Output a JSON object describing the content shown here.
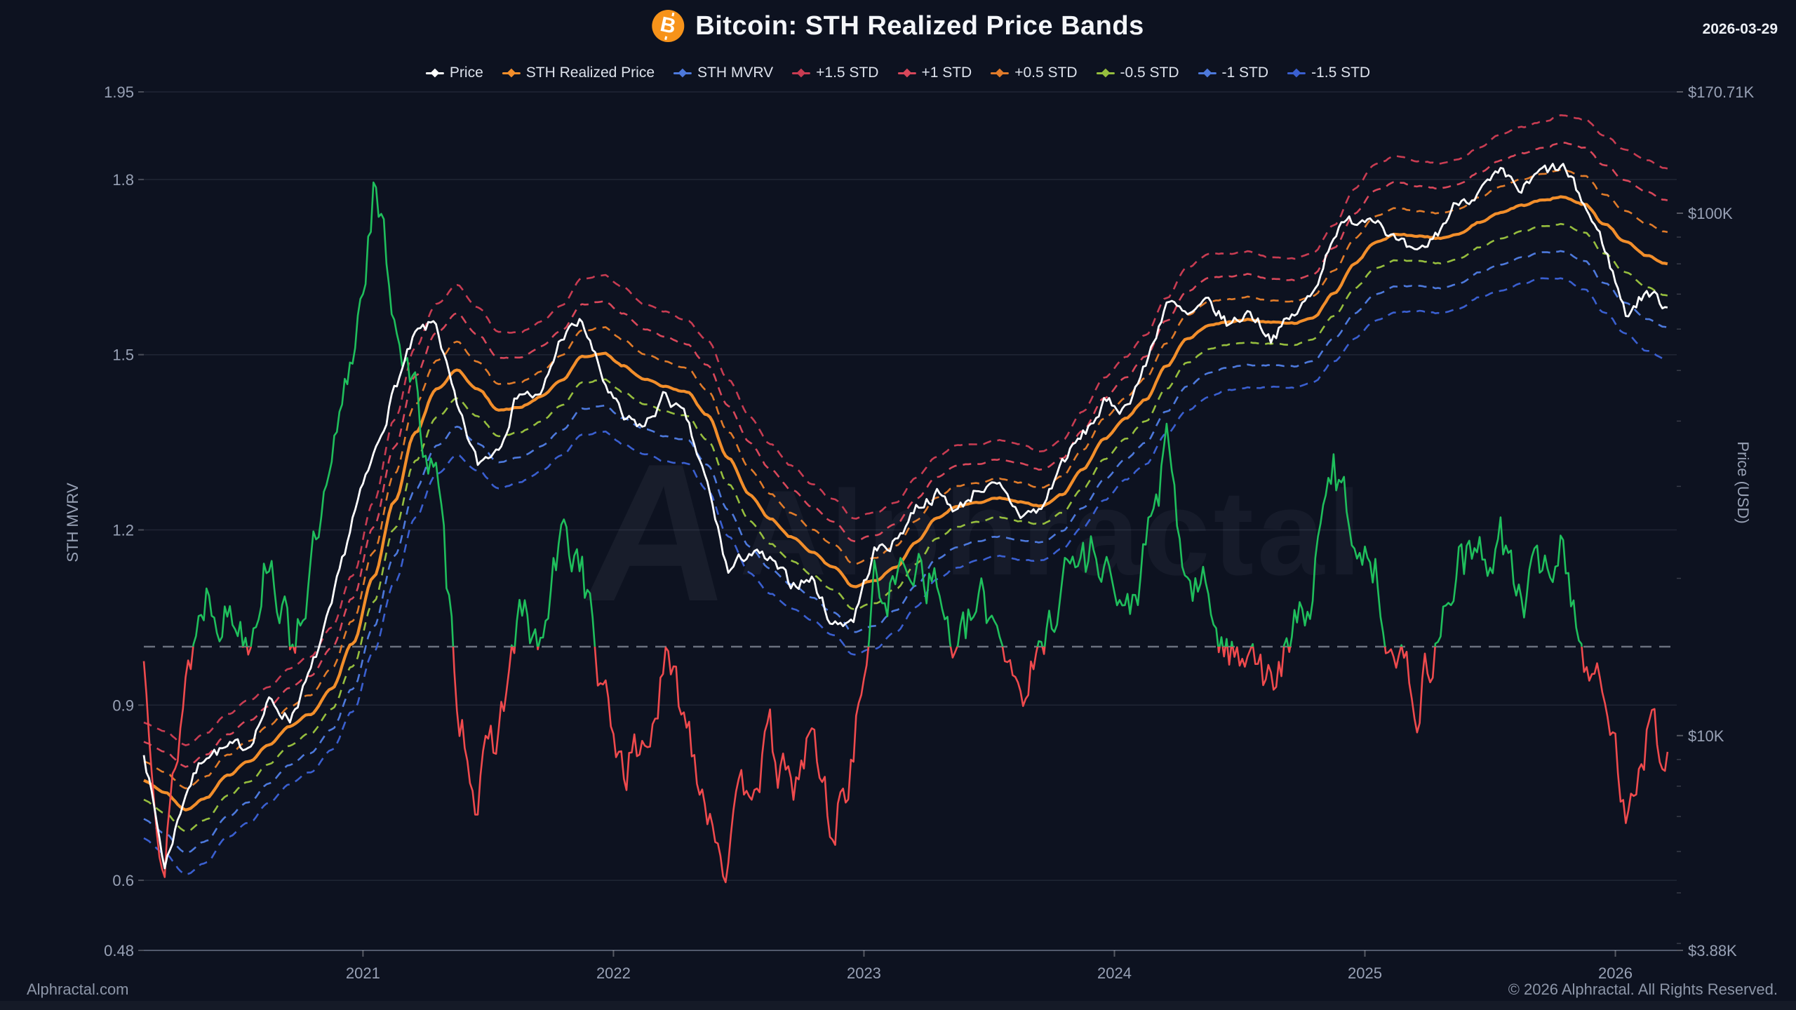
{
  "page": {
    "title": "Bitcoin: STH Realized Price Bands",
    "bitcoin_icon_letter": "B",
    "date": "2026-03-29",
    "watermark": "Alphractal",
    "watermark_initial": "A",
    "footer_left": "Alphractal.com",
    "footer_right": "© 2026 Alphractal. All Rights Reserved."
  },
  "colors": {
    "background": "#0d1220",
    "title_text": "#f4f6fa",
    "tick_text": "#98a1b5",
    "grid": "rgba(151,162,184,0.14)",
    "axis_line": "rgba(151,162,184,0.5)",
    "baseline_dashed": "rgba(185,192,205,0.55)",
    "bitcoin_orange": "#f7931a",
    "price": "#ffffff",
    "realized": "#f28e2b",
    "mvrv_above_1": "#1fbf5c",
    "mvrv_below_1": "#ef4a4d",
    "band_p15": "#c83c52",
    "band_p10": "#d8475a",
    "band_p05": "#e07b2a",
    "band_m05": "#96be3e",
    "band_m10": "#4d79dc",
    "band_m15": "#3a5fd0"
  },
  "legend": {
    "items": [
      {
        "label": "Price",
        "color": "#ffffff"
      },
      {
        "label": "STH Realized Price",
        "color": "#f28e2b"
      },
      {
        "label": "STH MVRV",
        "color": "#4d79dc"
      },
      {
        "label": "+1.5 STD",
        "color": "#c83c52"
      },
      {
        "label": "+1 STD",
        "color": "#d8475a"
      },
      {
        "label": "+0.5 STD",
        "color": "#e07b2a"
      },
      {
        "label": "-0.5 STD",
        "color": "#96be3e"
      },
      {
        "label": "-1 STD",
        "color": "#4d79dc"
      },
      {
        "label": "-1.5 STD",
        "color": "#3a5fd0"
      }
    ]
  },
  "axes": {
    "left": {
      "title": "STH MVRV",
      "ticks": [
        {
          "label": "1.95",
          "value": 1.95
        },
        {
          "label": "1.8",
          "value": 1.8
        },
        {
          "label": "1.5",
          "value": 1.5
        },
        {
          "label": "1.2",
          "value": 1.2
        },
        {
          "label": "0.9",
          "value": 0.9
        },
        {
          "label": "0.6",
          "value": 0.6
        },
        {
          "label": "0.48",
          "value": 0.48
        }
      ],
      "range": [
        0.48,
        1.95
      ],
      "scale": "linear"
    },
    "right": {
      "title": "Price (USD)",
      "ticks": [
        {
          "label": "$170.71K",
          "value": 170710
        },
        {
          "label": "$100K",
          "value": 100000
        },
        {
          "label": "$10K",
          "value": 10000
        },
        {
          "label": "$3.88K",
          "value": 3880
        }
      ],
      "range": [
        3880,
        170710
      ],
      "scale": "log"
    },
    "x": {
      "ticks": [
        "2021",
        "2022",
        "2023",
        "2024",
        "2025",
        "2026"
      ],
      "tick_values": [
        2021,
        2022,
        2023,
        2024,
        2025,
        2026
      ],
      "range_years": [
        2020.125,
        2026.245
      ]
    }
  },
  "chart_data": {
    "type": "line",
    "title": "Bitcoin: STH Realized Price Bands",
    "sampling": "monthly (estimated from chart)",
    "x_start_year": 2020.125,
    "x_step_years": 0.0833333,
    "baseline": {
      "mvrv": 1.0,
      "style": "dashed-gray"
    },
    "legend_position": "top-center",
    "grid": "horizontal-only",
    "series": [
      {
        "name": "Price",
        "axis": "right-log-usd",
        "color": "#ffffff",
        "style": "solid",
        "values": [
          9400,
          5600,
          7800,
          9300,
          9400,
          9600,
          11600,
          10800,
          13200,
          17500,
          26000,
          34000,
          46000,
          58000,
          62000,
          42000,
          33000,
          36000,
          46000,
          44000,
          58000,
          62000,
          48000,
          40000,
          39000,
          45000,
          40000,
          30000,
          20500,
          22500,
          21500,
          19500,
          20000,
          16300,
          16800,
          22500,
          23500,
          27500,
          29000,
          27000,
          30000,
          29500,
          26500,
          27000,
          33500,
          37500,
          43000,
          42500,
          51000,
          68000,
          63000,
          67000,
          61000,
          65000,
          58000,
          63000,
          70000,
          92000,
          97000,
          100000,
          88000,
          82000,
          92000,
          106000,
          110000,
          118000,
          110000,
          120000,
          122000,
          104000,
          86000,
          64000,
          71000,
          66000
        ]
      },
      {
        "name": "STH Realized Price",
        "axis": "right-log-usd",
        "color": "#f28e2b",
        "style": "solid",
        "values": [
          8200,
          7800,
          7200,
          7600,
          8400,
          8900,
          9600,
          10400,
          11000,
          12300,
          15000,
          20000,
          28000,
          38000,
          46000,
          50000,
          46000,
          42000,
          42500,
          44500,
          48000,
          53000,
          54000,
          51000,
          48000,
          46500,
          45500,
          41000,
          34000,
          29000,
          26000,
          24000,
          22500,
          21000,
          19300,
          19800,
          21000,
          23500,
          26000,
          27500,
          28000,
          28500,
          28000,
          27500,
          29000,
          32500,
          37000,
          40500,
          44000,
          51000,
          57500,
          61000,
          62000,
          62500,
          62000,
          61500,
          63000,
          70000,
          80000,
          88000,
          91000,
          90500,
          89500,
          91500,
          96000,
          100000,
          103500,
          106000,
          107500,
          104000,
          95000,
          88000,
          83000,
          80000
        ]
      },
      {
        "name": "STH MVRV",
        "axis": "left-mvrv",
        "style": "solid",
        "color_above_1": "#1fbf5c",
        "color_below_1": "#ef4a4d",
        "values": [
          0.97,
          0.63,
          0.95,
          1.1,
          1.06,
          1.03,
          1.17,
          1.0,
          1.13,
          1.28,
          1.5,
          1.78,
          1.58,
          1.42,
          1.28,
          0.93,
          0.74,
          0.86,
          1.05,
          0.99,
          1.18,
          1.15,
          0.9,
          0.8,
          0.83,
          0.96,
          0.88,
          0.74,
          0.63,
          0.78,
          0.83,
          0.74,
          0.85,
          0.68,
          0.82,
          1.1,
          1.1,
          1.17,
          1.1,
          0.98,
          1.07,
          1.04,
          0.93,
          0.98,
          1.13,
          1.15,
          1.17,
          1.03,
          1.16,
          1.33,
          1.1,
          1.09,
          0.97,
          1.03,
          0.92,
          1.01,
          1.1,
          1.31,
          1.2,
          1.13,
          0.98,
          0.91,
          1.02,
          1.15,
          1.14,
          1.19,
          1.07,
          1.14,
          1.17,
          0.99,
          0.89,
          0.74,
          0.86,
          0.82
        ]
      }
    ],
    "std_bands": {
      "description": "dashed band k = STH Realized Price × exp(k × sigma)",
      "levels": [
        {
          "name": "+1.5 STD",
          "k": 1.5,
          "color": "#c83c52"
        },
        {
          "name": "+1 STD",
          "k": 1.0,
          "color": "#d8475a"
        },
        {
          "name": "+0.5 STD",
          "k": 0.5,
          "color": "#e07b2a"
        },
        {
          "name": "-0.5 STD",
          "k": -0.5,
          "color": "#96be3e"
        },
        {
          "name": "-1 STD",
          "k": -1.0,
          "color": "#4d79dc"
        },
        {
          "name": "-1.5 STD",
          "k": -1.5,
          "color": "#3a5fd0"
        }
      ],
      "sigma": [
        0.17,
        0.18,
        0.19,
        0.19,
        0.18,
        0.18,
        0.17,
        0.17,
        0.17,
        0.18,
        0.2,
        0.22,
        0.24,
        0.25,
        0.25,
        0.25,
        0.24,
        0.23,
        0.22,
        0.22,
        0.22,
        0.23,
        0.23,
        0.23,
        0.22,
        0.22,
        0.21,
        0.22,
        0.23,
        0.23,
        0.22,
        0.21,
        0.2,
        0.2,
        0.2,
        0.2,
        0.19,
        0.19,
        0.18,
        0.18,
        0.17,
        0.17,
        0.17,
        0.16,
        0.16,
        0.17,
        0.18,
        0.18,
        0.19,
        0.2,
        0.21,
        0.21,
        0.2,
        0.2,
        0.19,
        0.19,
        0.19,
        0.2,
        0.22,
        0.23,
        0.23,
        0.22,
        0.22,
        0.22,
        0.22,
        0.23,
        0.23,
        0.23,
        0.24,
        0.25,
        0.26,
        0.27,
        0.28,
        0.28
      ]
    }
  }
}
